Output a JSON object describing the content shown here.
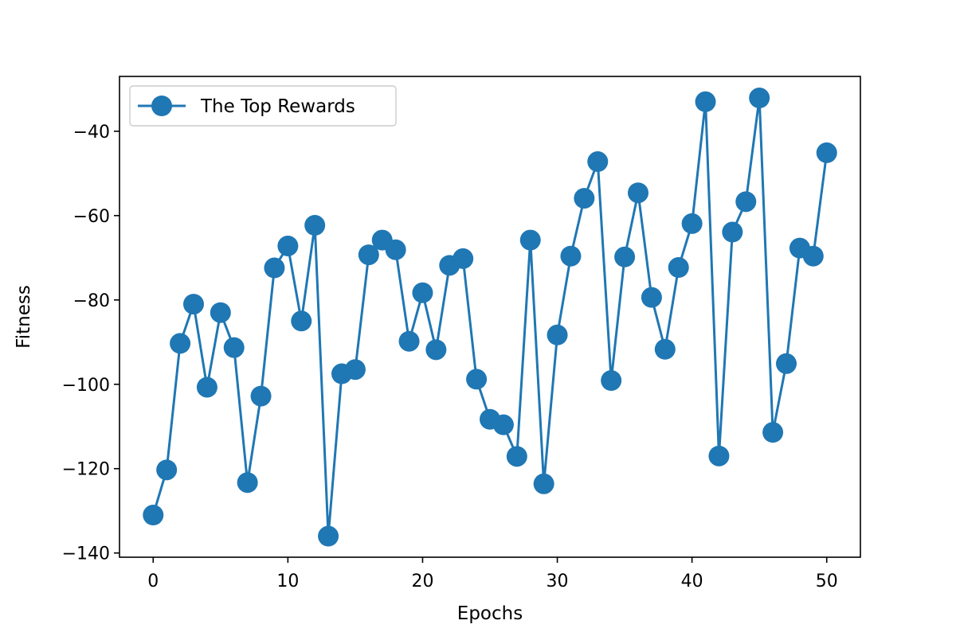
{
  "chart_data": {
    "type": "line",
    "title": "",
    "xlabel": "Epochs",
    "ylabel": "Fitness",
    "xlim": [
      -2.5,
      52.5
    ],
    "ylim": [
      -141,
      -27
    ],
    "x_ticks": [
      0,
      10,
      20,
      30,
      40,
      50
    ],
    "x_tick_labels": [
      "0",
      "10",
      "20",
      "30",
      "40",
      "50"
    ],
    "y_ticks": [
      -140,
      -120,
      -100,
      -80,
      -60,
      -40
    ],
    "y_tick_labels": [
      "−140",
      "−120",
      "−100",
      "−80",
      "−60",
      "−40"
    ],
    "grid": false,
    "legend_position": "top-left",
    "series": [
      {
        "name": "The Top Rewards",
        "color": "#1f77b4",
        "marker": "circle",
        "x": [
          0,
          1,
          2,
          3,
          4,
          5,
          6,
          7,
          8,
          9,
          10,
          11,
          12,
          13,
          14,
          15,
          16,
          17,
          18,
          19,
          20,
          21,
          22,
          23,
          24,
          25,
          26,
          27,
          28,
          29,
          30,
          31,
          32,
          33,
          34,
          35,
          36,
          37,
          38,
          39,
          40,
          41,
          42,
          43,
          44,
          45,
          46,
          47,
          48,
          49,
          50
        ],
        "y": [
          -131,
          -120.3,
          -90.3,
          -81,
          -100.7,
          -83,
          -91.3,
          -123.3,
          -102.8,
          -72.4,
          -67.2,
          -85,
          -62.3,
          -136,
          -97.5,
          -96.5,
          -69.3,
          -65.8,
          -68.1,
          -89.8,
          -78.3,
          -91.8,
          -71.8,
          -70.2,
          -98.8,
          -108.3,
          -109.6,
          -117.1,
          -65.8,
          -123.6,
          -88.3,
          -69.6,
          -55.9,
          -47.2,
          -99.1,
          -69.8,
          -54.6,
          -79.4,
          -91.7,
          -72.3,
          -61.9,
          -33,
          -117,
          -63.9,
          -56.7,
          -32.1,
          -111.4,
          -95.1,
          -67.7,
          -69.6,
          -45.1
        ]
      }
    ]
  }
}
